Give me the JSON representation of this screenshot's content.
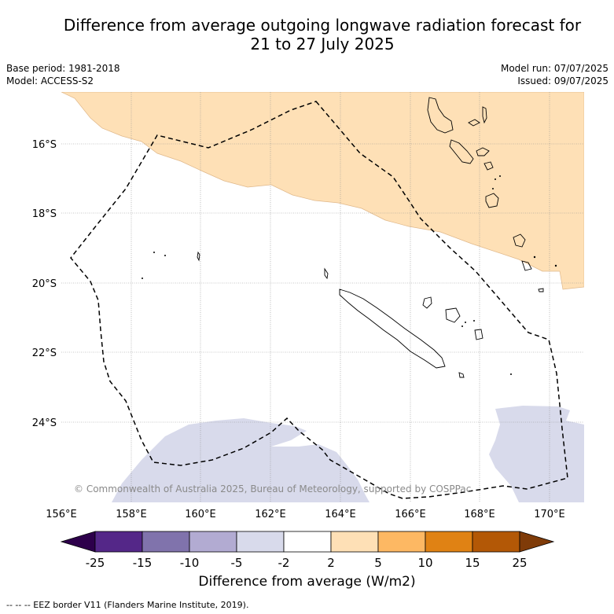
{
  "title_line1": "Difference from average outgoing longwave radiation forecast for",
  "title_line2": "21 to 27 July 2025",
  "base_period": "Base period: 1981-2018",
  "model": "Model: ACCESS-S2",
  "model_run": "Model run: 07/07/2025",
  "issued": "Issued: 09/07/2025",
  "copyright": "© Commonwealth of Australia 2025, Bureau of Meteorology, supported by COSPPac",
  "lat_ticks": [
    "16°S",
    "18°S",
    "20°S",
    "22°S",
    "24°S"
  ],
  "lon_ticks": [
    "156°E",
    "158°E",
    "160°E",
    "162°E",
    "164°E",
    "166°E",
    "168°E",
    "170°E"
  ],
  "colorbar": {
    "labels": [
      "-25",
      "-15",
      "-10",
      "-5",
      "-2",
      "2",
      "5",
      "10",
      "15",
      "25"
    ],
    "colors": [
      "#2d004b",
      "#542788",
      "#8073ac",
      "#b2abd2",
      "#d8daeb",
      "#ffffff",
      "#fee0b6",
      "#fdb863",
      "#e08214",
      "#b35806",
      "#7f3b08"
    ],
    "title": "Difference from average (W/m2)"
  },
  "footnote": "--  --  -- EEZ border V11 (Flanders Marine Institute, 2019)."
}
